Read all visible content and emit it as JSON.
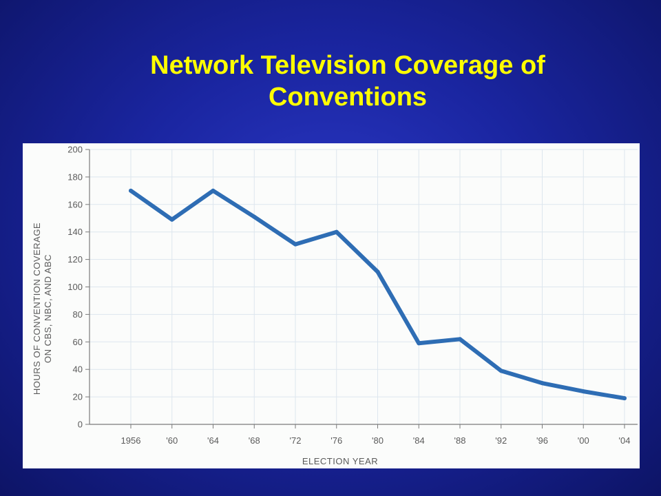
{
  "slide": {
    "title_line1": "Network Television Coverage of",
    "title_line2": "Conventions"
  },
  "colors": {
    "background": "#1a25a0",
    "title": "#ffff00",
    "line": "#2e6db4",
    "grid": "#dde6ee"
  },
  "chart_data": {
    "type": "line",
    "title": "",
    "xlabel": "ELECTION YEAR",
    "ylabel": "HOURS OF CONVENTION COVERAGE ON CBS, NBC, AND ABC",
    "ylabel_line1": "HOURS OF CONVENTION COVERAGE",
    "ylabel_line2": "ON CBS, NBC, AND ABC",
    "categories": [
      "1956",
      "'60",
      "'64",
      "'68",
      "'72",
      "'76",
      "'80",
      "'84",
      "'88",
      "'92",
      "'96",
      "'00",
      "'04"
    ],
    "x": [
      1956,
      1960,
      1964,
      1968,
      1972,
      1976,
      1980,
      1984,
      1988,
      1992,
      1996,
      2000,
      2004
    ],
    "series": [
      {
        "values": [
          170,
          149,
          170,
          151,
          131,
          140,
          111,
          59,
          62,
          39,
          30,
          24,
          19
        ]
      }
    ],
    "ylim": [
      0,
      200
    ],
    "yticks": [
      0,
      20,
      40,
      60,
      80,
      100,
      120,
      140,
      160,
      180,
      200
    ],
    "grid": true,
    "legend": "none"
  }
}
